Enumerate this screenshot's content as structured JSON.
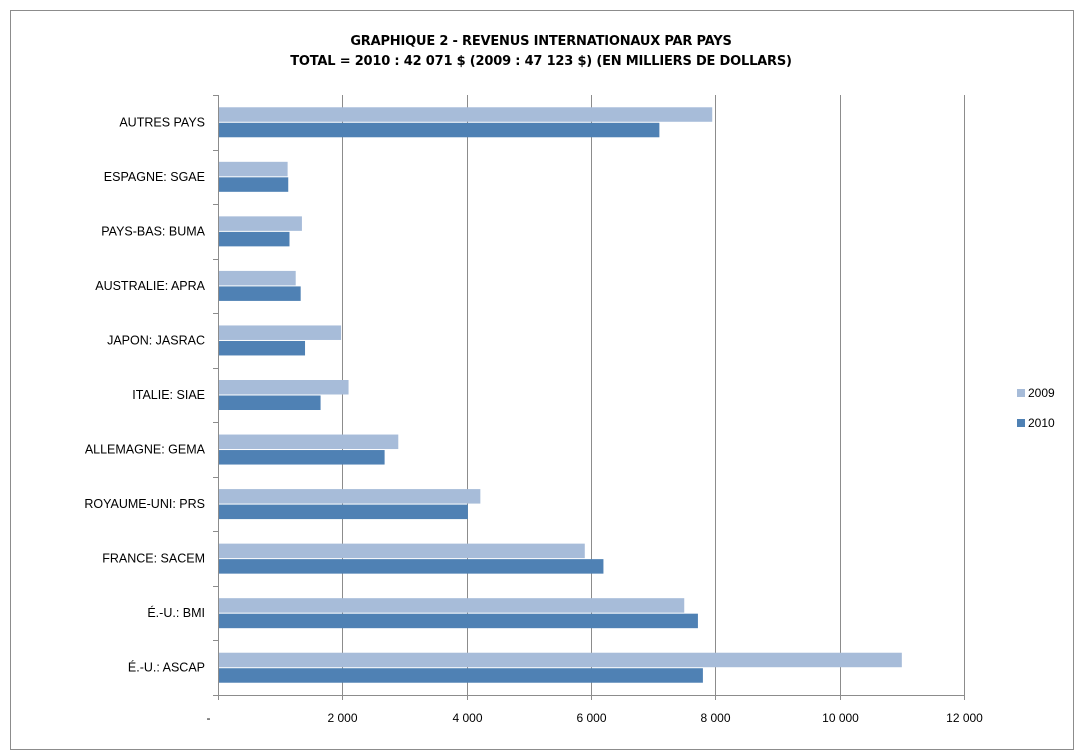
{
  "colors": {
    "series_2009": "#a7bcd9",
    "series_2010": "#4f81b4",
    "gridline": "#8c8c8c",
    "axis": "#8c8c8c"
  },
  "chart_data": {
    "type": "bar",
    "orientation": "horizontal",
    "title": "GRAPHIQUE 2 - REVENUS INTERNATIONAUX PAR PAYS",
    "subtitle": "TOTAL = 2010 : 42 071 $ (2009 : 47 123 $) (EN MILLIERS DE DOLLARS)",
    "categories": [
      "AUTRES PAYS",
      "ESPAGNE: SGAE",
      "PAYS-BAS: BUMA",
      "AUSTRALIE: APRA",
      "JAPON: JASRAC",
      "ITALIE: SIAE",
      "ALLEMAGNE: GEMA",
      "ROYAUME-UNI: PRS",
      "FRANCE: SACEM",
      "É.-U.: BMI",
      "É.-U.: ASCAP"
    ],
    "series": [
      {
        "name": "2009",
        "values": [
          7950,
          1120,
          1350,
          1250,
          1980,
          2100,
          2900,
          4220,
          5900,
          7500,
          11000
        ]
      },
      {
        "name": "2010",
        "values": [
          7100,
          1130,
          1150,
          1330,
          1400,
          1650,
          2680,
          4020,
          6200,
          7720,
          7800
        ]
      }
    ],
    "xlim": [
      0,
      12000
    ],
    "xticks": [
      0,
      2000,
      4000,
      6000,
      8000,
      10000,
      12000
    ],
    "xtick_labels": [
      "-",
      "2 000",
      "4 000",
      "6 000",
      "8 000",
      "10 000",
      "12 000"
    ],
    "grid": true,
    "legend_position": "right"
  }
}
